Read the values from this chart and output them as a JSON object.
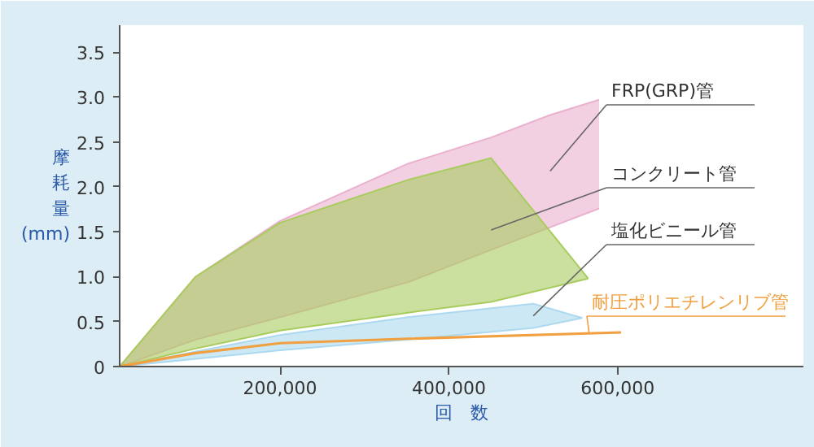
{
  "chart_data": {
    "type": "line",
    "xlabel": "回　数",
    "ylabel": "摩耗量(mm)",
    "xlim": [
      10000,
      820000
    ],
    "ylim": [
      0,
      3.8
    ],
    "xticks": [
      {
        "value": 200000,
        "label": "200,000"
      },
      {
        "value": 400000,
        "label": "400,000"
      },
      {
        "value": 600000,
        "label": "600,000"
      }
    ],
    "yticks": [
      0,
      0.5,
      {
        "value": 1,
        "label": "1.0"
      },
      1.5,
      {
        "value": 2,
        "label": "2.0"
      },
      2.5,
      {
        "value": 3,
        "label": "3.0"
      },
      3.5
    ],
    "grid": false,
    "series": [
      {
        "color": "#eab1ce",
        "x": [
          10000,
          100000,
          200000,
          352000,
          450000,
          520000,
          578000
        ],
        "values": [
          0,
          1.0,
          1.62,
          2.26,
          2.55,
          2.8,
          2.97
        ],
        "upper": [
          0,
          1.0,
          1.62,
          2.26,
          2.55,
          2.8,
          2.97
        ],
        "lower": [
          0,
          0.3,
          0.55,
          0.94,
          1.3,
          1.55,
          1.76
        ]
      },
      {
        "color": "#a8cc5e",
        "x": [
          10000,
          100000,
          200000,
          352000,
          450000,
          565000
        ],
        "values": [
          0,
          1.0,
          1.6,
          2.08,
          2.32,
          0.98
        ],
        "upper": [
          0,
          1.0,
          1.6,
          2.08,
          2.32,
          0.98
        ],
        "lower": [
          0,
          0.2,
          0.4,
          0.6,
          0.72,
          0.98
        ]
      },
      {
        "color": "#acd9ef",
        "x": [
          10000,
          200000,
          352000,
          500000,
          558000
        ],
        "values": [
          0,
          0.35,
          0.55,
          0.7,
          0.54
        ],
        "upper": [
          0,
          0.35,
          0.55,
          0.7,
          0.54
        ],
        "lower": [
          0,
          0.18,
          0.3,
          0.43,
          0.54
        ]
      },
      {
        "color": "#f0a040",
        "x": [
          10000,
          100000,
          200000,
          352000,
          604000
        ],
        "values": [
          0,
          0.15,
          0.26,
          0.31,
          0.38
        ]
      }
    ],
    "annotations": [
      "FRP(GRP)管",
      "コンクリート管",
      "塩化ビニール管",
      "耐圧ポリエチレンリブ管"
    ]
  }
}
